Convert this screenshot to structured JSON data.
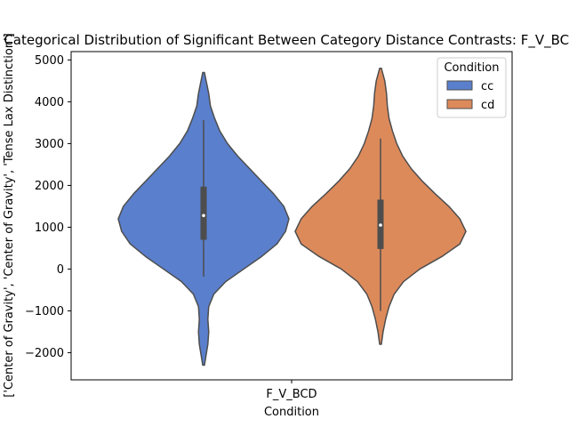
{
  "chart_data": {
    "type": "violin",
    "title": "Categorical Distribution of Significant Between Category Distance Contrasts: F_V_BCD",
    "xlabel": "Condition",
    "ylabel": "['Center of Gravity', 'Center of Gravity', 'Tense Lax Distinction']",
    "categories": [
      "F_V_BCD"
    ],
    "y_ticks": [
      -2000,
      -1000,
      0,
      1000,
      2000,
      3000,
      4000,
      5000
    ],
    "ylim": [
      -2650,
      5200
    ],
    "grid": false,
    "legend": {
      "title": "Condition",
      "placement": "top-right",
      "entries": [
        "cc",
        "cd"
      ]
    },
    "series": [
      {
        "name": "cc",
        "color": "#5a7fcc",
        "min": -2300,
        "max": 4700,
        "q1": 700,
        "median": 1280,
        "q3": 1970,
        "whisker_low": -180,
        "whisker_high": 3560,
        "density": [
          [
            -2300,
            0.01
          ],
          [
            -2050,
            0.03
          ],
          [
            -1800,
            0.05
          ],
          [
            -1500,
            0.06
          ],
          [
            -1200,
            0.05
          ],
          [
            -900,
            0.06
          ],
          [
            -600,
            0.12
          ],
          [
            -300,
            0.26
          ],
          [
            0,
            0.47
          ],
          [
            300,
            0.68
          ],
          [
            600,
            0.86
          ],
          [
            900,
            0.96
          ],
          [
            1200,
            1.0
          ],
          [
            1500,
            0.94
          ],
          [
            1800,
            0.82
          ],
          [
            2100,
            0.68
          ],
          [
            2400,
            0.54
          ],
          [
            2700,
            0.4
          ],
          [
            3000,
            0.28
          ],
          [
            3300,
            0.19
          ],
          [
            3600,
            0.13
          ],
          [
            3900,
            0.08
          ],
          [
            4200,
            0.06
          ],
          [
            4500,
            0.03
          ],
          [
            4700,
            0.01
          ]
        ]
      },
      {
        "name": "cd",
        "color": "#dd8a5b",
        "min": -1800,
        "max": 4800,
        "q1": 480,
        "median": 1050,
        "q3": 1660,
        "whisker_low": -1000,
        "whisker_high": 3120,
        "density": [
          [
            -1800,
            0.01
          ],
          [
            -1500,
            0.03
          ],
          [
            -1200,
            0.06
          ],
          [
            -900,
            0.1
          ],
          [
            -600,
            0.16
          ],
          [
            -300,
            0.27
          ],
          [
            0,
            0.46
          ],
          [
            300,
            0.72
          ],
          [
            600,
            0.93
          ],
          [
            900,
            1.0
          ],
          [
            1200,
            0.93
          ],
          [
            1500,
            0.8
          ],
          [
            1800,
            0.64
          ],
          [
            2100,
            0.49
          ],
          [
            2400,
            0.36
          ],
          [
            2700,
            0.26
          ],
          [
            3000,
            0.19
          ],
          [
            3300,
            0.14
          ],
          [
            3600,
            0.1
          ],
          [
            3900,
            0.08
          ],
          [
            4200,
            0.07
          ],
          [
            4500,
            0.05
          ],
          [
            4800,
            0.01
          ]
        ]
      }
    ]
  }
}
